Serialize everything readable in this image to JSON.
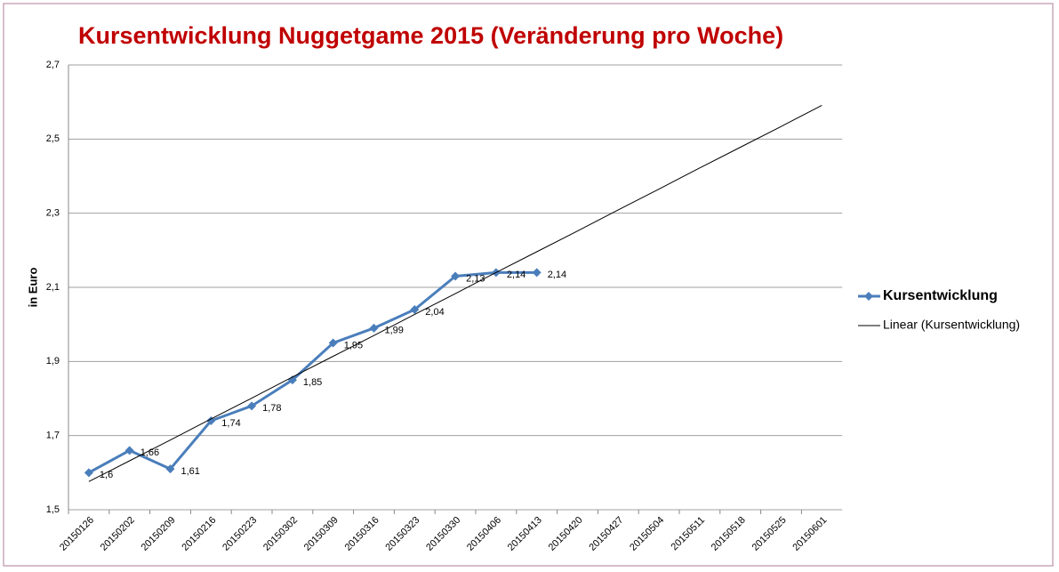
{
  "chart_data": {
    "type": "line",
    "title": "Kursentwicklung  Nuggetgame 2015      (Veränderung pro Woche)",
    "y_label": "in Euro",
    "categories": [
      "20150126",
      "20150202",
      "20150209",
      "20150216",
      "20150223",
      "20150302",
      "20150309",
      "20150316",
      "20150323",
      "20150330",
      "20150406",
      "20150413",
      "20150420",
      "20150427",
      "20150504",
      "20150511",
      "20150518",
      "20150525",
      "20150601"
    ],
    "series": [
      {
        "name": "Kursentwicklung",
        "color": "#4a7ebb",
        "values": [
          1.6,
          1.66,
          1.61,
          1.74,
          1.78,
          1.85,
          1.95,
          1.99,
          2.04,
          2.13,
          2.14,
          2.14,
          null,
          null,
          null,
          null,
          null,
          null,
          null
        ],
        "value_labels": [
          "1,6",
          "1,66",
          "1,61",
          "1,74",
          "1,78",
          "1,85",
          "1,95",
          "1,99",
          "2,04",
          "2,13",
          "2,14",
          "2,14",
          null,
          null,
          null,
          null,
          null,
          null,
          null
        ]
      },
      {
        "name": "Linear (Kursentwicklung)",
        "color": "#000000",
        "values": [
          1.576,
          1.632,
          1.688,
          1.745,
          1.801,
          1.858,
          1.914,
          1.97,
          2.027,
          2.083,
          2.14,
          2.196,
          2.252,
          2.309,
          2.365,
          2.422,
          2.478,
          2.534,
          2.591
        ]
      }
    ],
    "ylim": [
      1.5,
      2.7
    ],
    "yticks": [
      {
        "value": 1.5,
        "label": "1,5"
      },
      {
        "value": 1.7,
        "label": "1,7"
      },
      {
        "value": 1.9,
        "label": "1,9"
      },
      {
        "value": 2.1,
        "label": "2,1"
      },
      {
        "value": 2.3,
        "label": "2,3"
      },
      {
        "value": 2.5,
        "label": "2,5"
      },
      {
        "value": 2.7,
        "label": "2,7"
      }
    ],
    "grid": true,
    "legend": "right"
  }
}
